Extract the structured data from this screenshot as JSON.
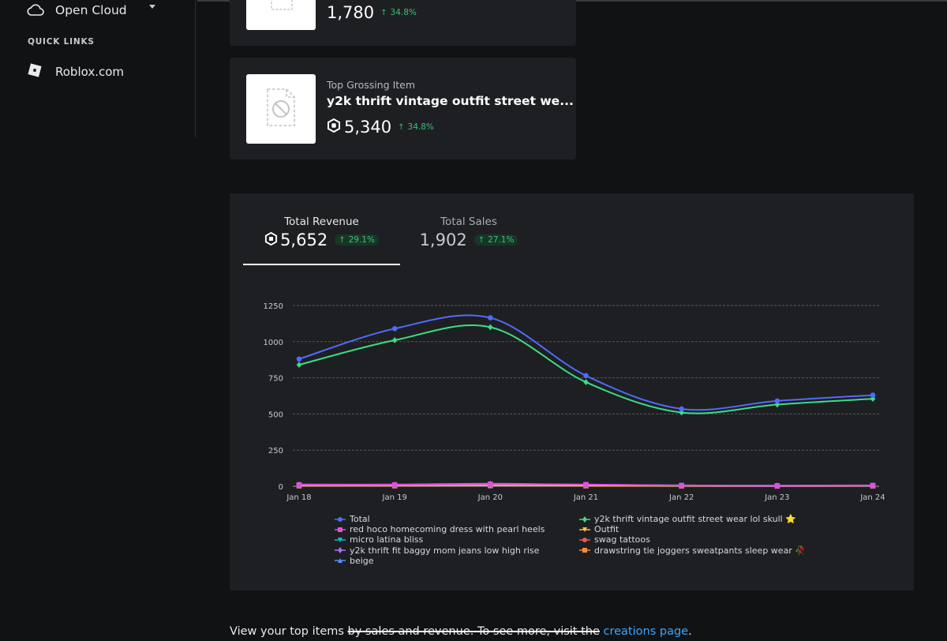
{
  "sidebar": {
    "nav_item": {
      "label": "Open Cloud",
      "icon": "cloud-icon"
    },
    "quick_links_heading": "QUICK LINKS",
    "quick_links": [
      {
        "label": "Roblox.com",
        "icon": "roblox-logo-icon"
      }
    ]
  },
  "cards": [
    {
      "label": "",
      "title": "",
      "value": "1,780",
      "trend": "34.8%",
      "show_currency_icon": false
    },
    {
      "label": "Top Grossing Item",
      "title": "y2k thrift vintage outfit street we...",
      "value": "5,340",
      "trend": "34.8%",
      "show_currency_icon": true
    }
  ],
  "tabs": [
    {
      "label": "Total Revenue",
      "value": "5,652",
      "trend": "29.1%",
      "selected": true
    },
    {
      "label": "Total Sales",
      "value": "1,902",
      "trend": "27.1%",
      "selected": false
    }
  ],
  "colors": {
    "accent_green": "#35c27a",
    "link_blue": "#3ba7ff",
    "total": "#4f6bff",
    "y2k_outfit": "#3ddc84"
  },
  "chart_data": {
    "type": "line",
    "categories": [
      "Jan 18",
      "Jan 19",
      "Jan 20",
      "Jan 21",
      "Jan 22",
      "Jan 23",
      "Jan 24"
    ],
    "ylim": [
      0,
      1250
    ],
    "yticks": [
      0,
      250,
      500,
      750,
      1000,
      1250
    ],
    "grid": true,
    "legend_position": "bottom",
    "series": [
      {
        "name": "Total",
        "color": "#4f6bff",
        "marker": "circle",
        "values": [
          880,
          1090,
          1165,
          765,
          535,
          590,
          630
        ]
      },
      {
        "name": "y2k thrift vintage outfit street wear lol skull ⭐",
        "color": "#3ddc84",
        "marker": "diamond",
        "values": [
          840,
          1010,
          1100,
          720,
          510,
          565,
          605
        ]
      },
      {
        "name": "red hoco homecoming dress with pearl heels",
        "color": "#e04fe0",
        "marker": "square",
        "values": [
          10,
          10,
          15,
          12,
          5,
          3,
          5
        ]
      },
      {
        "name": "Outfit",
        "color": "#f4c542",
        "marker": "triangle-down",
        "values": [
          5,
          5,
          8,
          5,
          3,
          2,
          3
        ]
      },
      {
        "name": "micro latina bliss",
        "color": "#19b5c6",
        "marker": "triangle-down",
        "values": [
          8,
          8,
          10,
          8,
          6,
          4,
          5
        ]
      },
      {
        "name": "swag tattoos",
        "color": "#e85c4a",
        "marker": "circle",
        "values": [
          6,
          6,
          8,
          5,
          3,
          3,
          4
        ]
      },
      {
        "name": "y2k thrift fit baggy mom jeans low high rise",
        "color": "#b06cf2",
        "marker": "diamond",
        "values": [
          12,
          12,
          18,
          10,
          6,
          5,
          6
        ]
      },
      {
        "name": "drawstring tie joggers sweatpants sleep wear 🥀",
        "color": "#f28b42",
        "marker": "square",
        "values": [
          4,
          4,
          6,
          4,
          2,
          2,
          3
        ]
      },
      {
        "name": "beige",
        "color": "#5b8df5",
        "marker": "triangle-up",
        "values": [
          3,
          3,
          4,
          3,
          2,
          1,
          2
        ]
      }
    ]
  },
  "footer": {
    "text_before": "View your top items ",
    "strike_text": "by sales and revenue. To see more, visit the",
    "link_text": "creations page",
    "text_after": "."
  }
}
